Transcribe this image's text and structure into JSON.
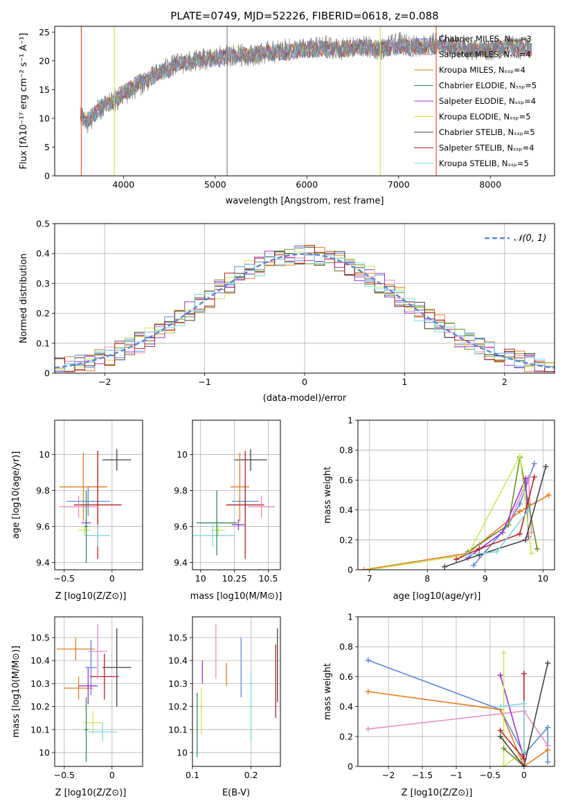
{
  "chart_data": [
    {
      "id": "spectrum",
      "type": "line",
      "title": "PLATE=0749, MJD=52226, FIBERID=0618, z=0.088",
      "xlabel": "wavelength [Angstrom, rest frame]",
      "ylabel": "Flux [fλ10⁻¹⁷ erg cm⁻² s⁻¹ A⁻¹]",
      "xlim": [
        3250,
        8700
      ],
      "ylim": [
        0,
        26
      ],
      "xticks": [
        4000,
        5000,
        6000,
        7000,
        8000
      ],
      "yticks": [
        0,
        5,
        10,
        15,
        20,
        25
      ],
      "grid": false,
      "legend_position": "top-right",
      "series": [
        {
          "name": "Chabrier MILES, N_SSP=3",
          "color": "#5b86d6"
        },
        {
          "name": "Salpeter MILES, N_SSP=4",
          "color": "#e78ac3"
        },
        {
          "name": "Kroupa MILES, N_SSP=4",
          "color": "#b8860b"
        },
        {
          "name": "Chabrier ELODIE, N_SSP=5",
          "color": "#2e8b57"
        },
        {
          "name": "Salpeter ELODIE, N_SSP=4",
          "color": "#9932cc"
        },
        {
          "name": "Kroupa ELODIE, N_SSP=5",
          "color": "#e6d84a"
        },
        {
          "name": "Chabrier STELIB, N_SSP=5",
          "color": "#404040"
        },
        {
          "name": "Salpeter STELIB, N_SSP=4",
          "color": "#b22222"
        },
        {
          "name": "Kroupa STELIB, N_SSP=5",
          "color": "#7fd7e0"
        }
      ],
      "data_series": {
        "name": "data",
        "color": "#808080",
        "x": [
          3530,
          3600,
          3700,
          3800,
          3900,
          4000,
          4100,
          4200,
          4300,
          4400,
          4500,
          4600,
          4800,
          5000,
          5200,
          5400,
          5600,
          5800,
          6000,
          6200,
          6400,
          6600,
          6800,
          7000,
          7200,
          7400,
          7600,
          7800,
          8000,
          8200,
          8450
        ],
        "y": [
          11,
          9,
          11,
          12,
          13,
          14,
          15,
          16,
          17,
          18,
          19,
          19.5,
          20,
          20.5,
          21,
          21,
          21.5,
          22,
          22,
          22.5,
          22,
          22.5,
          22,
          23,
          22.5,
          23,
          22.5,
          22,
          22,
          22.5,
          22
        ]
      },
      "model_series": {
        "x": [
          3530,
          3600,
          3700,
          3800,
          3900,
          4000,
          4100,
          4200,
          4300,
          4400,
          4500,
          4600,
          4800,
          5000,
          5200,
          5400,
          5600,
          5800,
          6000,
          6200,
          6400,
          6600,
          6800,
          7000,
          7200,
          7400,
          7600,
          7800,
          8000,
          8200,
          8450
        ],
        "y": [
          10.5,
          9.5,
          11,
          12.5,
          13,
          14.5,
          15.5,
          16.5,
          17,
          18,
          18.5,
          19.5,
          20,
          20.5,
          21,
          21,
          21.5,
          21.5,
          22,
          22,
          22,
          22.5,
          22,
          22.5,
          22.5,
          22.5,
          22.5,
          22,
          22,
          22.5,
          22
        ]
      }
    },
    {
      "id": "residuals",
      "type": "line",
      "xlabel": "(data-model)/error",
      "ylabel": "Normed distribution",
      "xlim": [
        -2.5,
        2.5
      ],
      "ylim": [
        0,
        0.5
      ],
      "xticks": [
        -2,
        -1,
        0,
        1,
        2
      ],
      "yticks": [
        0.0,
        0.1,
        0.2,
        0.3,
        0.4,
        0.5
      ],
      "grid": true,
      "legend_position": "top-right",
      "legend_label": "𝒩(0, 1)",
      "series": [
        {
          "name": "N(0,1)",
          "color": "#5b86d6",
          "style": "dashed",
          "kind": "gaussian",
          "mu": 0,
          "sigma": 1
        }
      ],
      "histogram_colors": [
        "#5b86d6",
        "#e78ac3",
        "#e07b20",
        "#6b8e23",
        "#9932cc",
        "#c8e85a",
        "#404040",
        "#b22222",
        "#7fd7e0"
      ],
      "bin_width": 0.1
    },
    {
      "id": "age-vs-z",
      "type": "scatter",
      "xlabel": "Z [log10(Z/Z⊙)]",
      "ylabel": "age  [log10(age/yr)]",
      "xlim": [
        -0.6,
        0.32
      ],
      "ylim": [
        9.36,
        10.19
      ],
      "xticks": [
        -0.5,
        0.0
      ],
      "yticks": [
        9.4,
        9.6,
        9.8,
        10.0
      ],
      "grid": true,
      "points": [
        {
          "x": 0.05,
          "y": 9.97,
          "xerr": 0.15,
          "yerr": 0.06,
          "color": "#404040"
        },
        {
          "x": -0.15,
          "y": 9.82,
          "xerr": 0.1,
          "yerr": 0.2,
          "color": "#e07b20"
        },
        {
          "x": -0.3,
          "y": 9.82,
          "xerr": 0.25,
          "yerr": 0.19,
          "color": "#e07b20"
        },
        {
          "x": -0.25,
          "y": 9.74,
          "xerr": 0.23,
          "yerr": 0.08,
          "color": "#5b86d6"
        },
        {
          "x": -0.15,
          "y": 9.72,
          "xerr": 0.25,
          "yerr": 0.3,
          "color": "#b22222"
        },
        {
          "x": -0.35,
          "y": 9.71,
          "xerr": 0.2,
          "yerr": 0.06,
          "color": "#e78ac3"
        },
        {
          "x": -0.27,
          "y": 9.62,
          "xerr": 0.05,
          "yerr": 0.03,
          "color": "#9932cc"
        },
        {
          "x": -0.29,
          "y": 9.58,
          "xerr": 0.06,
          "yerr": 0.03,
          "color": "#c8e85a"
        },
        {
          "x": -0.15,
          "y": 9.55,
          "xerr": 0.13,
          "yerr": 0.06,
          "color": "#7fd7e0"
        },
        {
          "x": -0.27,
          "y": 9.6,
          "xerr": 0.02,
          "yerr": 0.2,
          "color": "#2e8b57"
        }
      ]
    },
    {
      "id": "age-vs-mass",
      "type": "scatter",
      "xlabel": "mass [log10(M/M⊙)]",
      "xlim": [
        9.94,
        10.59
      ],
      "ylim": [
        9.36,
        10.19
      ],
      "xticks": [
        10.0,
        10.25,
        10.5
      ],
      "yticks": [
        9.4,
        9.6,
        9.8,
        10.0
      ],
      "grid": true,
      "points": [
        {
          "x": 10.37,
          "y": 9.97,
          "xerr": 0.12,
          "yerr": 0.06,
          "color": "#404040"
        },
        {
          "x": 10.29,
          "y": 9.82,
          "xerr": 0.07,
          "yerr": 0.19,
          "color": "#e07b20"
        },
        {
          "x": 10.33,
          "y": 9.74,
          "xerr": 0.1,
          "yerr": 0.08,
          "color": "#5b86d6"
        },
        {
          "x": 10.33,
          "y": 9.72,
          "xerr": 0.14,
          "yerr": 0.3,
          "color": "#b22222"
        },
        {
          "x": 10.45,
          "y": 9.71,
          "xerr": 0.1,
          "yerr": 0.06,
          "color": "#e78ac3"
        },
        {
          "x": 10.28,
          "y": 9.61,
          "xerr": 0.05,
          "yerr": 0.03,
          "color": "#9932cc"
        },
        {
          "x": 10.13,
          "y": 9.58,
          "xerr": 0.05,
          "yerr": 0.03,
          "color": "#c8e85a"
        },
        {
          "x": 10.09,
          "y": 9.55,
          "xerr": 0.16,
          "yerr": 0.06,
          "color": "#7fd7e0"
        },
        {
          "x": 10.12,
          "y": 9.62,
          "xerr": 0.15,
          "yerr": 0.18,
          "color": "#2e8b57"
        }
      ]
    },
    {
      "id": "mass-weight-vs-age",
      "type": "line",
      "xlabel": "age  [log10(age/yr)]",
      "ylabel": "mass weight",
      "xlim": [
        6.8,
        10.2
      ],
      "ylim": [
        0.0,
        1.0
      ],
      "xticks": [
        7,
        8,
        9,
        10
      ],
      "yticks": [
        0.0,
        0.2,
        0.4,
        0.6,
        0.8,
        1.0
      ],
      "grid": true,
      "series": [
        {
          "color": "#5b86d6",
          "x": [
            8.8,
            9.4,
            9.6,
            9.85
          ],
          "y": [
            0.03,
            0.3,
            0.44,
            0.71
          ]
        },
        {
          "color": "#e07b20",
          "x": [
            6.9,
            8.7,
            9.6,
            10.1
          ],
          "y": [
            0.0,
            0.11,
            0.39,
            0.5
          ]
        },
        {
          "color": "#e78ac3",
          "x": [
            8.9,
            9.4,
            9.75,
            9.8
          ],
          "y": [
            0.17,
            0.3,
            0.62,
            0.25
          ]
        },
        {
          "color": "#6b8e23",
          "x": [
            8.7,
            9.4,
            9.6,
            9.75,
            9.9
          ],
          "y": [
            0.12,
            0.3,
            0.75,
            0.44,
            0.14
          ]
        },
        {
          "color": "#9932cc",
          "x": [
            8.7,
            9.3,
            9.7,
            9.75
          ],
          "y": [
            0.08,
            0.25,
            0.61,
            0.22
          ]
        },
        {
          "color": "#c8e85a",
          "x": [
            7.0,
            8.7,
            9.6,
            9.8
          ],
          "y": [
            0.0,
            0.1,
            0.76,
            0.11
          ]
        },
        {
          "color": "#404040",
          "x": [
            8.3,
            8.9,
            9.7,
            10.05
          ],
          "y": [
            0.02,
            0.1,
            0.2,
            0.69
          ]
        },
        {
          "color": "#b22222",
          "x": [
            8.5,
            8.9,
            9.6,
            9.85
          ],
          "y": [
            0.07,
            0.14,
            0.24,
            0.62
          ]
        },
        {
          "color": "#7fd7e0",
          "x": [
            8.7,
            9.2,
            9.75
          ],
          "y": [
            0.1,
            0.12,
            0.4
          ]
        }
      ]
    },
    {
      "id": "mass-vs-z",
      "type": "scatter",
      "xlabel": "Z [log10(Z/Z⊙)]",
      "ylabel": "mass [log10(M/M⊙)]",
      "xlim": [
        -0.6,
        0.32
      ],
      "ylim": [
        9.94,
        10.59
      ],
      "xticks": [
        -0.5,
        0.0
      ],
      "yticks": [
        10.0,
        10.1,
        10.2,
        10.3,
        10.4,
        10.5
      ],
      "grid": true,
      "points": [
        {
          "x": 0.05,
          "y": 10.37,
          "xerr": 0.15,
          "yerr": 0.17,
          "color": "#404040"
        },
        {
          "x": -0.38,
          "y": 10.45,
          "xerr": 0.2,
          "yerr": 0.05,
          "color": "#e07b20"
        },
        {
          "x": -0.35,
          "y": 10.28,
          "xerr": 0.15,
          "yerr": 0.05,
          "color": "#e07b20"
        },
        {
          "x": -0.22,
          "y": 10.37,
          "xerr": 0.06,
          "yerr": 0.12,
          "color": "#5b86d6"
        },
        {
          "x": -0.08,
          "y": 10.33,
          "xerr": 0.15,
          "yerr": 0.1,
          "color": "#b22222"
        },
        {
          "x": -0.15,
          "y": 10.44,
          "xerr": 0.1,
          "yerr": 0.12,
          "color": "#e78ac3"
        },
        {
          "x": -0.25,
          "y": 10.29,
          "xerr": 0.1,
          "yerr": 0.08,
          "color": "#9932cc"
        },
        {
          "x": -0.2,
          "y": 10.13,
          "xerr": 0.1,
          "yerr": 0.05,
          "color": "#c8e85a"
        },
        {
          "x": -0.1,
          "y": 10.09,
          "xerr": 0.15,
          "yerr": 0.04,
          "color": "#7fd7e0"
        },
        {
          "x": -0.27,
          "y": 10.1,
          "xerr": 0.02,
          "yerr": 0.14,
          "color": "#2e8b57"
        }
      ]
    },
    {
      "id": "mass-vs-ebv",
      "type": "scatter",
      "xlabel": "E(B-V)",
      "xlim": [
        0.1,
        0.25
      ],
      "ylim": [
        9.94,
        10.59
      ],
      "xticks": [
        0.1,
        0.2
      ],
      "yticks": [
        10.0,
        10.1,
        10.2,
        10.3,
        10.4,
        10.5
      ],
      "grid": true,
      "points": [
        {
          "x": 0.245,
          "y": 10.38,
          "yerr": 0.16,
          "color": "#404040"
        },
        {
          "x": 0.242,
          "y": 10.31,
          "yerr": 0.16,
          "color": "#b22222"
        },
        {
          "x": 0.183,
          "y": 10.37,
          "yerr": 0.13,
          "color": "#5b86d6"
        },
        {
          "x": 0.158,
          "y": 10.34,
          "yerr": 0.05,
          "color": "#e07b20"
        },
        {
          "x": 0.14,
          "y": 10.44,
          "yerr": 0.12,
          "color": "#e78ac3"
        },
        {
          "x": 0.117,
          "y": 10.35,
          "yerr": 0.05,
          "color": "#9932cc"
        },
        {
          "x": 0.115,
          "y": 10.18,
          "yerr": 0.1,
          "color": "#c8e85a"
        },
        {
          "x": 0.2,
          "y": 10.2,
          "yerr": 0.15,
          "color": "#7fd7e0"
        },
        {
          "x": 0.108,
          "y": 10.12,
          "yerr": 0.14,
          "color": "#2e8b57"
        }
      ]
    },
    {
      "id": "mass-weight-vs-z",
      "type": "line",
      "xlabel": "Z [log10(Z/Z⊙)]",
      "ylabel": "mass weight",
      "xlim": [
        -2.45,
        0.45
      ],
      "ylim": [
        0.0,
        1.0
      ],
      "xticks": [
        -2.0,
        -1.5,
        -1.0,
        -0.5,
        0.0
      ],
      "yticks": [
        0.0,
        0.2,
        0.4,
        0.6,
        0.8,
        1.0
      ],
      "grid": true,
      "series": [
        {
          "color": "#5b86d6",
          "x": [
            -2.3,
            -0.35,
            0.0,
            0.35,
            0.35
          ],
          "y": [
            0.71,
            0.38,
            0.08,
            0.26,
            0.03
          ]
        },
        {
          "color": "#e07b20",
          "x": [
            -2.3,
            -0.35,
            0.0,
            0.35
          ],
          "y": [
            0.5,
            0.38,
            0.0,
            0.11
          ]
        },
        {
          "color": "#e78ac3",
          "x": [
            -2.3,
            0.0,
            0.35
          ],
          "y": [
            0.25,
            0.37,
            0.14
          ]
        },
        {
          "color": "#9932cc",
          "x": [
            -0.35,
            0.0
          ],
          "y": [
            0.61,
            0.05
          ]
        },
        {
          "color": "#c8e85a",
          "x": [
            -0.3,
            -0.3,
            0.0
          ],
          "y": [
            0.76,
            0.0,
            0.1
          ]
        },
        {
          "color": "#6b8e23",
          "x": [
            -0.3,
            0.0
          ],
          "y": [
            0.12,
            0.0
          ]
        },
        {
          "color": "#404040",
          "x": [
            -0.35,
            0.0,
            0.35
          ],
          "y": [
            0.2,
            0.0,
            0.69
          ]
        },
        {
          "color": "#b22222",
          "x": [
            -0.35,
            0.0,
            0.0
          ],
          "y": [
            0.24,
            0.05,
            0.62
          ]
        },
        {
          "color": "#7fd7e0",
          "x": [
            -0.35,
            0.0,
            0.0
          ],
          "y": [
            0.4,
            0.42,
            0.1
          ]
        }
      ]
    }
  ]
}
